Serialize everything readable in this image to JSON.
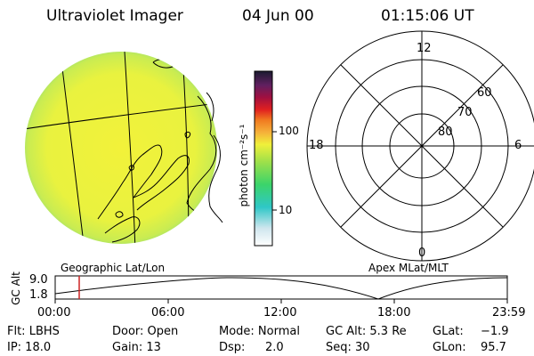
{
  "header": {
    "instrument": "Ultraviolet Imager",
    "date": "04 Jun 00",
    "time": "01:15:06 UT"
  },
  "colorbar": {
    "unit_label": "photon cm⁻²s⁻¹",
    "ticks": [
      "100",
      "10"
    ]
  },
  "polar_plot": {
    "mlt_labels": {
      "top": "12",
      "left": "18",
      "right": "6",
      "bottom": "0"
    },
    "lat_labels": [
      "60",
      "70",
      "80"
    ]
  },
  "plot_titles": {
    "left": "Geographic Lat/Lon",
    "right": "Apex MLat/MLT"
  },
  "timeline": {
    "ylabel": "GC Alt",
    "ytick_top": "9.0",
    "ytick_bottom": "1.8",
    "x_ticks": [
      "00:00",
      "06:00",
      "12:00",
      "18:00",
      "23:59"
    ],
    "marker_color": "#cc2222"
  },
  "status": {
    "filter": "Flt: LBHS",
    "ip": "IP: 18.0",
    "door": "Door: Open",
    "gain": "Gain: 13",
    "mode": "Mode: Normal",
    "dsp": "Dsp:",
    "dsp_value": "2.0",
    "gc_alt": "GC Alt: 5.3 Re",
    "seq": "Seq: 30",
    "glat": "GLat:",
    "glat_value": "−1.9",
    "glon": "GLon:",
    "glon_value": "95.7"
  },
  "colors": {
    "image_fill": "#eef23c",
    "image_edge": "#7fd97a",
    "line": "#000000"
  }
}
